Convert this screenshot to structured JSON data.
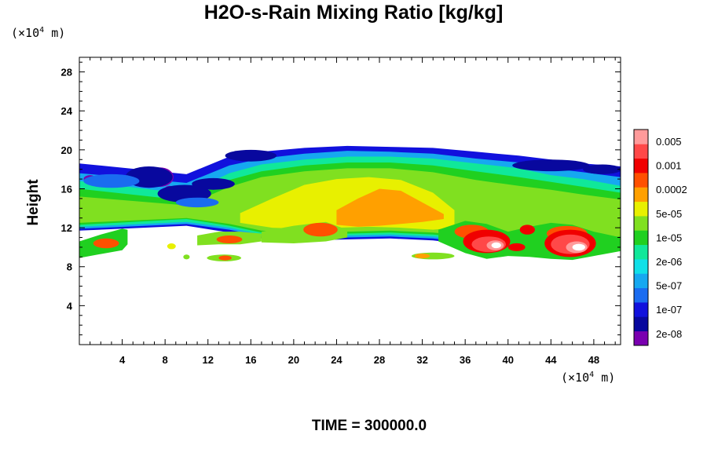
{
  "chart_data": {
    "type": "heatmap",
    "title": "H2O-s-Rain Mixing Ratio [kg/kg]",
    "ylabel": "Height",
    "x_unit": "m",
    "x_unit_scale": "×10",
    "x_unit_exp": "4",
    "y_unit": "m",
    "y_unit_scale": "×10",
    "y_unit_exp": "4",
    "xlim": [
      0,
      50.5
    ],
    "ylim": [
      0,
      29.5
    ],
    "x_ticks": [
      4,
      8,
      12,
      16,
      20,
      24,
      28,
      32,
      36,
      40,
      44,
      48
    ],
    "y_ticks": [
      4,
      8,
      12,
      16,
      20,
      24,
      28
    ],
    "colorbar_labels": [
      "0.005",
      "0.001",
      "0.0002",
      "5e-05",
      "1e-05",
      "2e-06",
      "5e-07",
      "1e-07",
      "2e-08"
    ],
    "colorbar_colors": [
      "#7a00b0",
      "#08089e",
      "#1111dd",
      "#1a6cf0",
      "#16a8f0",
      "#10e0e8",
      "#10e89a",
      "#20d020",
      "#80e020",
      "#e8f000",
      "#ffa000",
      "#ff5000",
      "#f00000",
      "#ff4848",
      "#ff9a9a"
    ],
    "field_bands": [
      {
        "level": 2,
        "x": [
          0,
          10,
          14,
          17,
          21,
          25,
          29,
          33,
          37,
          41,
          44,
          47,
          50.5
        ],
        "bottom": [
          11.7,
          12.2,
          11.5,
          10.9,
          10.7,
          10.8,
          10.9,
          10.7,
          10.2,
          10.0,
          10.2,
          10.2,
          10.3
        ],
        "top": [
          18.6,
          17.5,
          19.3,
          19.8,
          20.2,
          20.4,
          20.3,
          20.2,
          19.8,
          19.4,
          19.0,
          18.6,
          18.3
        ]
      },
      {
        "level": 4,
        "x": [
          0,
          10,
          14,
          17,
          21,
          25,
          29,
          33,
          37,
          41,
          44,
          47,
          50.5
        ],
        "bottom": [
          11.9,
          12.4,
          11.8,
          11.1,
          10.9,
          11.0,
          11.1,
          10.9,
          10.4,
          10.2,
          10.4,
          10.4,
          10.5
        ],
        "top": [
          17.6,
          16.6,
          18.4,
          19.1,
          19.6,
          19.9,
          19.8,
          19.6,
          19.1,
          18.7,
          18.1,
          17.7,
          17.2
        ]
      },
      {
        "level": 6,
        "x": [
          0,
          10,
          14,
          17,
          21,
          25,
          29,
          33,
          37,
          41,
          44,
          47,
          50.5
        ],
        "bottom": [
          12.1,
          12.6,
          12.0,
          11.3,
          11.1,
          11.2,
          11.3,
          11.1,
          10.7,
          10.4,
          10.6,
          10.6,
          10.7
        ],
        "top": [
          16.8,
          15.5,
          17.6,
          18.5,
          19.0,
          19.3,
          19.3,
          19.1,
          18.6,
          18.1,
          17.4,
          17.0,
          16.3
        ]
      },
      {
        "level": 7,
        "x": [
          0,
          10,
          14,
          17,
          21,
          25,
          29,
          33,
          37,
          41,
          44,
          47,
          50.5
        ],
        "bottom": [
          12.3,
          12.9,
          12.2,
          11.5,
          11.3,
          11.4,
          11.5,
          11.3,
          10.9,
          10.6,
          10.8,
          10.8,
          10.9
        ],
        "top": [
          16.0,
          14.8,
          16.9,
          17.8,
          18.4,
          18.7,
          18.7,
          18.4,
          17.8,
          17.2,
          16.7,
          16.2,
          15.6
        ]
      },
      {
        "level": 8,
        "x": [
          0,
          10,
          14,
          17,
          21,
          25,
          29,
          33,
          37,
          41,
          44,
          47,
          50.5
        ],
        "bottom": [
          12.5,
          13.0,
          12.4,
          11.7,
          11.5,
          11.6,
          11.7,
          11.5,
          11.1,
          10.8,
          11.0,
          11.0,
          11.1
        ],
        "top": [
          15.2,
          14.3,
          16.2,
          17.2,
          17.8,
          18.1,
          18.1,
          17.7,
          16.9,
          16.3,
          15.9,
          15.4,
          14.9
        ]
      },
      {
        "level": 9,
        "x": [
          15,
          18,
          21,
          24,
          27,
          30,
          33,
          35
        ],
        "bottom": [
          12.5,
          12.0,
          11.9,
          12.0,
          12.1,
          12.0,
          11.8,
          12.0
        ],
        "top": [
          13.5,
          15.0,
          16.4,
          17.0,
          17.2,
          16.9,
          15.6,
          13.8
        ]
      },
      {
        "level": 10,
        "x": [
          24,
          26,
          28,
          30,
          32,
          34
        ],
        "bottom": [
          12.3,
          12.1,
          12.2,
          12.4,
          12.6,
          12.9
        ],
        "top": [
          13.8,
          15.0,
          16.0,
          15.8,
          14.6,
          13.4
        ]
      }
    ],
    "low_bands": [
      {
        "x": [
          0,
          2,
          4,
          4.5
        ],
        "bottom": [
          8.9,
          9.3,
          9.7,
          10.3
        ],
        "top": [
          10.6,
          11.3,
          11.9,
          11.8
        ]
      },
      {
        "x": [
          11,
          13,
          15,
          17
        ],
        "bottom": [
          10.2,
          10.3,
          10.3,
          10.6
        ],
        "top": [
          11.2,
          11.6,
          11.6,
          11.4
        ]
      },
      {
        "x": [
          17,
          20,
          23,
          25
        ],
        "bottom": [
          10.5,
          10.4,
          10.6,
          11.0
        ],
        "top": [
          11.6,
          12.2,
          12.6,
          11.8
        ]
      },
      {
        "x": [
          33.5,
          36,
          38,
          40,
          42,
          44,
          46,
          48,
          50.5
        ],
        "bottom": [
          10.6,
          9.4,
          8.8,
          9.1,
          9.0,
          8.8,
          8.7,
          9.1,
          9.6
        ],
        "top": [
          11.8,
          12.7,
          12.4,
          11.6,
          12.1,
          12.5,
          12.3,
          11.6,
          11.0
        ]
      }
    ],
    "patches": [
      {
        "level": 0,
        "x": 7.5,
        "y": 17.2,
        "rx": 1.3,
        "ry": 1.0
      },
      {
        "level": 0,
        "x": 8.4,
        "y": 15.8,
        "rx": 0.5,
        "ry": 0.5
      },
      {
        "level": 0,
        "x": 1.0,
        "y": 17.0,
        "rx": 0.6,
        "ry": 0.4
      },
      {
        "level": 1,
        "x": 6.5,
        "y": 17.2,
        "rx": 2.2,
        "ry": 1.1
      },
      {
        "level": 1,
        "x": 9.8,
        "y": 15.5,
        "rx": 2.5,
        "ry": 0.9
      },
      {
        "level": 1,
        "x": 12.5,
        "y": 16.5,
        "rx": 2.0,
        "ry": 0.6
      },
      {
        "level": 1,
        "x": 16.0,
        "y": 19.4,
        "rx": 2.4,
        "ry": 0.6
      },
      {
        "level": 1,
        "x": 44.0,
        "y": 18.4,
        "rx": 3.6,
        "ry": 0.6
      },
      {
        "level": 1,
        "x": 48.8,
        "y": 18.0,
        "rx": 1.8,
        "ry": 0.5
      },
      {
        "level": 3,
        "x": 3.0,
        "y": 16.8,
        "rx": 2.6,
        "ry": 0.7
      },
      {
        "level": 3,
        "x": 11.0,
        "y": 14.6,
        "rx": 2.0,
        "ry": 0.5
      },
      {
        "level": 11,
        "x": 22.5,
        "y": 11.8,
        "rx": 1.6,
        "ry": 0.7
      },
      {
        "level": 11,
        "x": 2.5,
        "y": 10.4,
        "rx": 1.2,
        "ry": 0.5
      },
      {
        "level": 11,
        "x": 36.6,
        "y": 11.6,
        "rx": 1.6,
        "ry": 0.7
      },
      {
        "level": 11,
        "x": 45.5,
        "y": 11.4,
        "rx": 1.9,
        "ry": 0.8
      },
      {
        "level": 11,
        "x": 14.0,
        "y": 10.8,
        "rx": 1.2,
        "ry": 0.4
      },
      {
        "level": 12,
        "x": 38.0,
        "y": 10.6,
        "rx": 2.2,
        "ry": 1.2
      },
      {
        "level": 12,
        "x": 45.8,
        "y": 10.4,
        "rx": 2.4,
        "ry": 1.4
      },
      {
        "level": 12,
        "x": 41.8,
        "y": 11.8,
        "rx": 0.7,
        "ry": 0.5
      },
      {
        "level": 12,
        "x": 40.8,
        "y": 10.0,
        "rx": 0.8,
        "ry": 0.4
      },
      {
        "level": 13,
        "x": 38.2,
        "y": 10.3,
        "rx": 1.6,
        "ry": 0.8
      },
      {
        "level": 13,
        "x": 45.8,
        "y": 10.3,
        "rx": 1.8,
        "ry": 1.0
      },
      {
        "level": 14,
        "x": 38.8,
        "y": 10.2,
        "rx": 0.8,
        "ry": 0.5
      },
      {
        "level": 14,
        "x": 46.4,
        "y": 10.0,
        "rx": 1.0,
        "ry": 0.6
      },
      {
        "level": 8,
        "x": 33.0,
        "y": 9.1,
        "rx": 2.0,
        "ry": 0.35
      },
      {
        "level": 10,
        "x": 32.0,
        "y": 9.1,
        "rx": 0.7,
        "ry": 0.25
      },
      {
        "level": 8,
        "x": 13.5,
        "y": 8.9,
        "rx": 1.6,
        "ry": 0.35
      },
      {
        "level": 11,
        "x": 13.6,
        "y": 8.9,
        "rx": 0.6,
        "ry": 0.25
      },
      {
        "level": 8,
        "x": 10.0,
        "y": 9.0,
        "rx": 0.3,
        "ry": 0.25
      },
      {
        "level": 9,
        "x": 8.6,
        "y": 10.1,
        "rx": 0.4,
        "ry": 0.3
      }
    ]
  },
  "footer": {
    "time_label": "TIME = 300000.0"
  }
}
